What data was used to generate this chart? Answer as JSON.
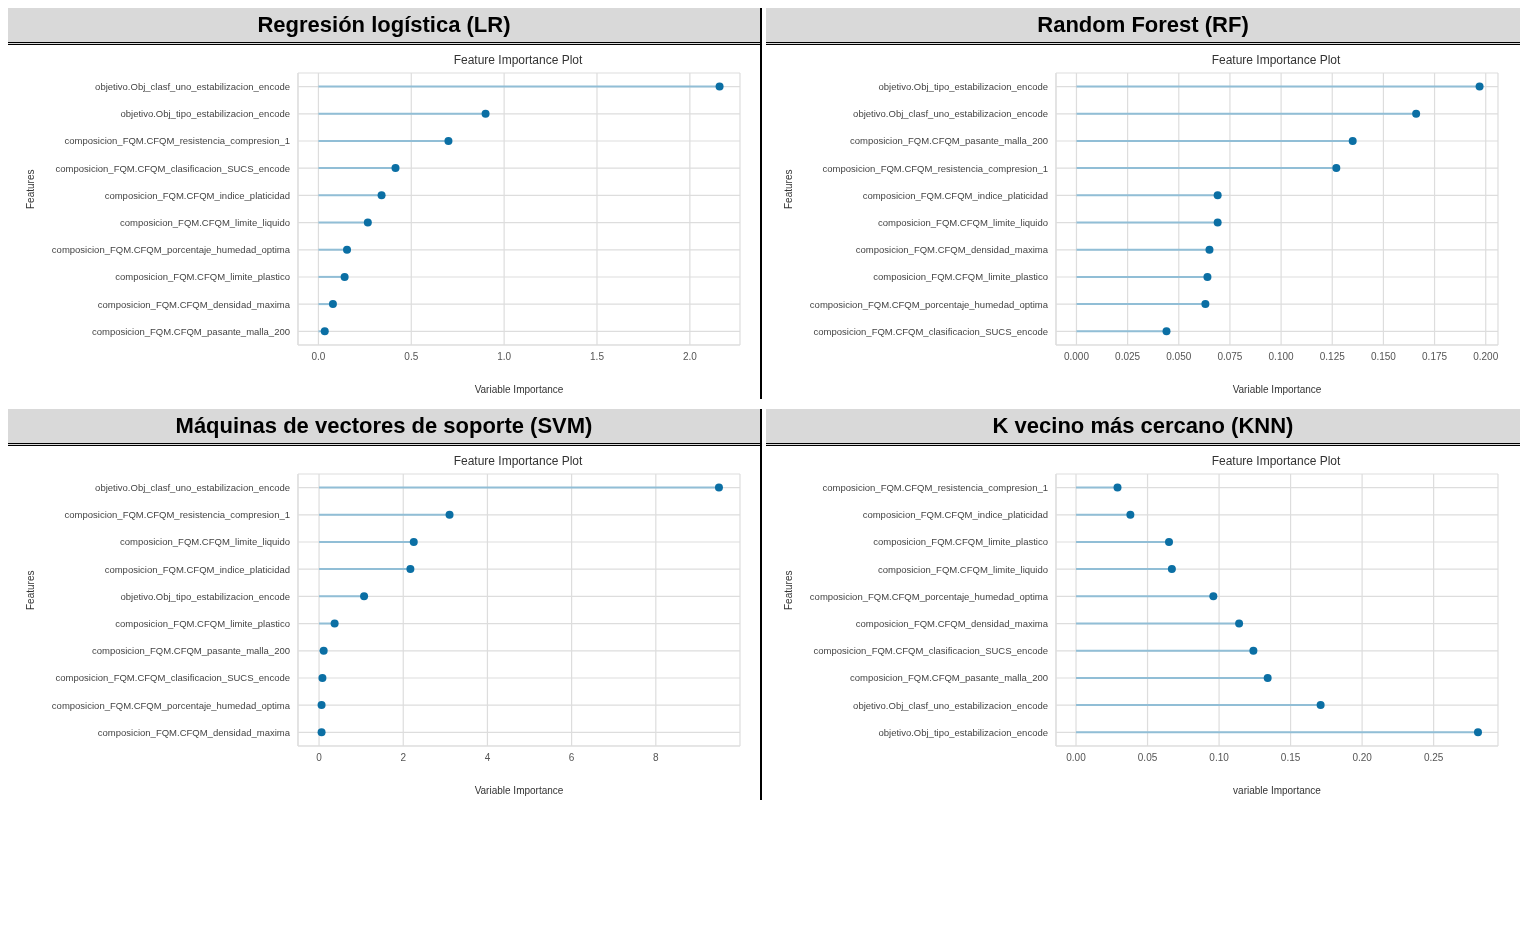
{
  "chart_data": [
    {
      "type": "lollipop",
      "title": "Regresión logística (LR)",
      "subtitle": "Feature Importance Plot",
      "xlabel": "Variable Importance",
      "ylabel": "Features",
      "orientation": "horizontal",
      "grid": true,
      "marker": "circle",
      "categories": [
        "objetivo.Obj_clasf_uno_estabilizacion_encode",
        "objetivo.Obj_tipo_estabilizacion_encode",
        "composicion_FQM.CFQM_resistencia_compresion_1",
        "composicion_FQM.CFQM_clasificacion_SUCS_encode",
        "composicion_FQM.CFQM_indice_platicidad",
        "composicion_FQM.CFQM_limite_liquido",
        "composicion_FQM.CFQM_porcentaje_humedad_optima",
        "composicion_FQM.CFQM_limite_plastico",
        "composicion_FQM.CFQM_densidad_maxima",
        "composicion_FQM.CFQM_pasante_malla_200"
      ],
      "series": [
        {
          "color": "#0b6fa4",
          "values": [
            2.16,
            0.9,
            0.7,
            0.415,
            0.34,
            0.266,
            0.154,
            0.141,
            0.078,
            0.034
          ]
        }
      ],
      "xlim": [
        -0.11,
        2.27
      ],
      "xticks": [
        {
          "value": 0,
          "label": "0.0"
        },
        {
          "value": 0.5,
          "label": "0.5"
        },
        {
          "value": 1,
          "label": "1.0"
        },
        {
          "value": 1.5,
          "label": "1.5"
        },
        {
          "value": 2,
          "label": "2.0"
        }
      ]
    },
    {
      "type": "lollipop",
      "title": "Random Forest (RF)",
      "subtitle": "Feature Importance Plot",
      "xlabel": "Variable Importance",
      "ylabel": "Features",
      "orientation": "horizontal",
      "grid": true,
      "marker": "circle",
      "categories": [
        "objetivo.Obj_tipo_estabilizacion_encode",
        "objetivo.Obj_clasf_uno_estabilizacion_encode",
        "composicion_FQM.CFQM_pasante_malla_200",
        "composicion_FQM.CFQM_resistencia_compresion_1",
        "composicion_FQM.CFQM_indice_platicidad",
        "composicion_FQM.CFQM_limite_liquido",
        "composicion_FQM.CFQM_densidad_maxima",
        "composicion_FQM.CFQM_limite_plastico",
        "composicion_FQM.CFQM_porcentaje_humedad_optima",
        "composicion_FQM.CFQM_clasificacion_SUCS_encode"
      ],
      "series": [
        {
          "color": "#0b6fa4",
          "values": [
            0.197,
            0.166,
            0.135,
            0.127,
            0.069,
            0.069,
            0.065,
            0.064,
            0.063,
            0.044
          ]
        }
      ],
      "xlim": [
        -0.01,
        0.206
      ],
      "xticks": [
        {
          "value": 0,
          "label": "0.000"
        },
        {
          "value": 0.025,
          "label": "0.025"
        },
        {
          "value": 0.05,
          "label": "0.050"
        },
        {
          "value": 0.075,
          "label": "0.075"
        },
        {
          "value": 0.1,
          "label": "0.100"
        },
        {
          "value": 0.125,
          "label": "0.125"
        },
        {
          "value": 0.15,
          "label": "0.150"
        },
        {
          "value": 0.175,
          "label": "0.175"
        },
        {
          "value": 0.2,
          "label": "0.200"
        }
      ]
    },
    {
      "type": "lollipop",
      "title": "Máquinas de vectores de soporte (SVM)",
      "subtitle": "Feature Importance Plot",
      "xlabel": "Variable Importance",
      "ylabel": "Features",
      "orientation": "horizontal",
      "grid": true,
      "marker": "circle",
      "categories": [
        "objetivo.Obj_clasf_uno_estabilizacion_encode",
        "composicion_FQM.CFQM_resistencia_compresion_1",
        "composicion_FQM.CFQM_limite_liquido",
        "composicion_FQM.CFQM_indice_platicidad",
        "objetivo.Obj_tipo_estabilizacion_encode",
        "composicion_FQM.CFQM_limite_plastico",
        "composicion_FQM.CFQM_pasante_malla_200",
        "composicion_FQM.CFQM_clasificacion_SUCS_encode",
        "composicion_FQM.CFQM_porcentaje_humedad_optima",
        "composicion_FQM.CFQM_densidad_maxima"
      ],
      "series": [
        {
          "color": "#0b6fa4",
          "values": [
            9.5,
            3.1,
            2.25,
            2.17,
            1.07,
            0.37,
            0.11,
            0.08,
            0.06,
            0.06
          ]
        }
      ],
      "xlim": [
        -0.5,
        10
      ],
      "xticks": [
        0,
        2,
        4,
        6,
        8
      ]
    },
    {
      "type": "lollipop",
      "title": "K vecino más cercano (KNN)",
      "subtitle": "Feature Importance Plot",
      "xlabel": "variable Importance",
      "ylabel": "Features",
      "orientation": "horizontal",
      "grid": true,
      "marker": "circle",
      "categories": [
        "composicion_FQM.CFQM_resistencia_compresion_1",
        "composicion_FQM.CFQM_indice_platicidad",
        "composicion_FQM.CFQM_limite_plastico",
        "composicion_FQM.CFQM_limite_liquido",
        "composicion_FQM.CFQM_porcentaje_humedad_optima",
        "composicion_FQM.CFQM_densidad_maxima",
        "composicion_FQM.CFQM_clasificacion_SUCS_encode",
        "composicion_FQM.CFQM_pasante_malla_200",
        "objetivo.Obj_clasf_uno_estabilizacion_encode",
        "objetivo.Obj_tipo_estabilizacion_encode"
      ],
      "series": [
        {
          "color": "#0b6fa4",
          "values": [
            0.029,
            0.038,
            0.065,
            0.067,
            0.096,
            0.114,
            0.124,
            0.134,
            0.171,
            0.281
          ]
        }
      ],
      "xlim": [
        -0.014,
        0.295
      ],
      "xticks": [
        {
          "value": 0,
          "label": "0.00"
        },
        {
          "value": 0.05,
          "label": "0.05"
        },
        {
          "value": 0.1,
          "label": "0.10"
        },
        {
          "value": 0.15,
          "label": "0.15"
        },
        {
          "value": 0.2,
          "label": "0.20"
        },
        {
          "value": 0.25,
          "label": "0.25"
        }
      ]
    }
  ]
}
